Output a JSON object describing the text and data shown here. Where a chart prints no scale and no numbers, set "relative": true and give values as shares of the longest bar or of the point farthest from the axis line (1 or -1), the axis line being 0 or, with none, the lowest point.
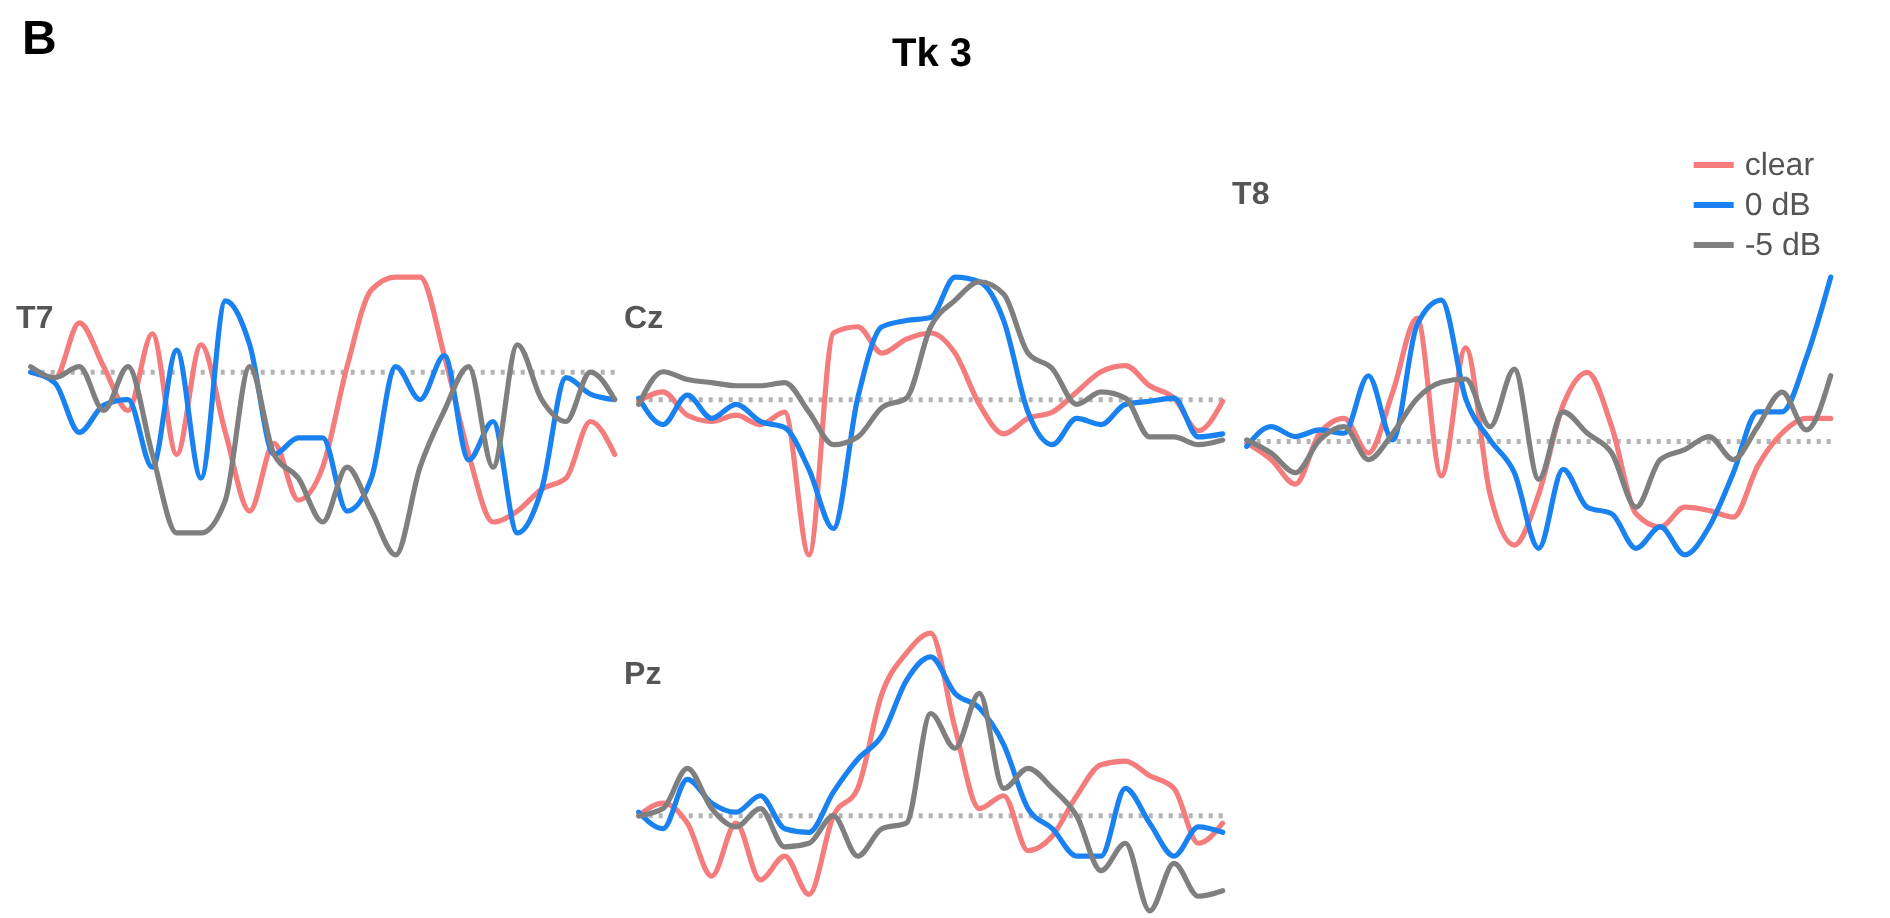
{
  "chart_data": [
    {
      "type": "other",
      "title": "Tk 3",
      "annotations": [
        "B"
      ]
    },
    {
      "type": "line",
      "title": "T7",
      "relative": true,
      "tick_labels": false,
      "marker": "none",
      "line_style": "solid",
      "categories": [
        null,
        null,
        null,
        null,
        null,
        null,
        null,
        null,
        null,
        null,
        null,
        null,
        null,
        null,
        null,
        null,
        null,
        null,
        null,
        null,
        null,
        null,
        null,
        null,
        null
      ],
      "ref_lines": [
        {
          "axis": "y",
          "value": 0,
          "color": "#b3b3b3",
          "line_style": "dotted"
        }
      ],
      "series": [
        {
          "color": "#f47c7c",
          "values": [
            0,
            -0.03,
            0.27,
            0.03,
            -0.21,
            0.21,
            -0.45,
            0.15,
            -0.33,
            -0.76,
            -0.39,
            -0.7,
            -0.52,
            0.03,
            0.45,
            0.52,
            0.52,
            0.09,
            -0.45,
            -0.82,
            -0.76,
            -0.64,
            -0.58,
            -0.27,
            -0.45
          ]
        },
        {
          "color": "#1a82f0",
          "values": [
            0,
            -0.06,
            -0.33,
            -0.18,
            -0.15,
            -0.52,
            0.12,
            -0.58,
            0.39,
            0.15,
            -0.45,
            -0.36,
            -0.36,
            -0.76,
            -0.58,
            0.03,
            -0.15,
            0.09,
            -0.48,
            -0.27,
            -0.88,
            -0.64,
            -0.03,
            -0.12,
            -0.15
          ]
        },
        {
          "color": "#7f7f7f",
          "values": [
            0.03,
            -0.03,
            0.03,
            -0.21,
            0.03,
            -0.45,
            -0.88,
            -0.88,
            -0.7,
            0.03,
            -0.45,
            -0.58,
            -0.82,
            -0.52,
            -0.76,
            -1,
            -0.52,
            -0.21,
            0.03,
            -0.52,
            0.15,
            -0.15,
            -0.27,
            0,
            -0.15
          ]
        }
      ]
    },
    {
      "type": "line",
      "title": "Cz",
      "relative": true,
      "tick_labels": false,
      "marker": "none",
      "line_style": "solid",
      "categories": [
        null,
        null,
        null,
        null,
        null,
        null,
        null,
        null,
        null,
        null,
        null,
        null,
        null,
        null,
        null,
        null,
        null,
        null,
        null,
        null,
        null,
        null,
        null,
        null,
        null
      ],
      "ref_lines": [
        {
          "axis": "y",
          "value": 0,
          "color": "#b3b3b3",
          "line_style": "dotted"
        }
      ],
      "series": [
        {
          "color": "#f47c7c",
          "values": [
            -0.01,
            0.05,
            -0.1,
            -0.14,
            -0.1,
            -0.16,
            -0.08,
            -1,
            0.43,
            0.47,
            0.3,
            0.39,
            0.43,
            0.3,
            -0.03,
            -0.22,
            -0.12,
            -0.08,
            0.05,
            0.18,
            0.22,
            0.09,
            0.01,
            -0.2,
            -0.01
          ]
        },
        {
          "color": "#1a82f0",
          "values": [
            0.01,
            -0.16,
            0.03,
            -0.12,
            -0.03,
            -0.14,
            -0.18,
            -0.45,
            -0.83,
            0.01,
            0.47,
            0.51,
            0.53,
            0.79,
            0.76,
            0.51,
            -0.08,
            -0.29,
            -0.12,
            -0.16,
            -0.03,
            -0.01,
            0.01,
            -0.24,
            -0.22
          ]
        },
        {
          "color": "#7f7f7f",
          "values": [
            -0.03,
            0.18,
            0.13,
            0.11,
            0.09,
            0.09,
            0.11,
            -0.08,
            -0.29,
            -0.24,
            -0.05,
            0.01,
            0.47,
            0.64,
            0.76,
            0.68,
            0.3,
            0.2,
            -0.03,
            0.05,
            0.01,
            -0.24,
            -0.24,
            -0.29,
            -0.26
          ]
        }
      ]
    },
    {
      "type": "line",
      "title": "T8",
      "relative": true,
      "tick_labels": false,
      "marker": "none",
      "line_style": "solid",
      "legend": "top right",
      "categories": [
        null,
        null,
        null,
        null,
        null,
        null,
        null,
        null,
        null,
        null,
        null,
        null,
        null,
        null,
        null,
        null,
        null,
        null,
        null,
        null,
        null,
        null,
        null,
        null,
        null
      ],
      "ref_lines": [
        {
          "axis": "y",
          "value": 0,
          "color": "#b3b3b3",
          "line_style": "dotted"
        }
      ],
      "series": [
        {
          "name": "clear",
          "color": "#f47c7c",
          "values": [
            -0.01,
            -0.11,
            -0.26,
            0.05,
            0.14,
            -0.07,
            0.3,
            0.75,
            -0.21,
            0.57,
            -0.32,
            -0.63,
            -0.32,
            0.22,
            0.42,
            0.09,
            -0.44,
            -0.52,
            -0.4,
            -0.42,
            -0.46,
            -0.15,
            0.05,
            0.14,
            0.14
          ]
        },
        {
          "name": "0 dB",
          "color": "#1a82f0",
          "values": [
            -0.03,
            0.09,
            0.03,
            0.07,
            0.05,
            0.4,
            0.01,
            0.71,
            0.86,
            0.26,
            0.01,
            -0.19,
            -0.65,
            -0.17,
            -0.4,
            -0.44,
            -0.65,
            -0.52,
            -0.69,
            -0.52,
            -0.19,
            0.18,
            0.18,
            0.51,
            1
          ]
        },
        {
          "name": "-5 dB",
          "color": "#7f7f7f",
          "values": [
            0.01,
            -0.07,
            -0.19,
            0.01,
            0.09,
            -0.11,
            0.05,
            0.26,
            0.36,
            0.38,
            0.09,
            0.44,
            -0.23,
            0.18,
            0.05,
            -0.07,
            -0.4,
            -0.11,
            -0.05,
            0.03,
            -0.11,
            0.09,
            0.3,
            0.07,
            0.4
          ]
        }
      ]
    },
    {
      "type": "line",
      "title": "Pz",
      "relative": true,
      "tick_labels": false,
      "marker": "none",
      "line_style": "solid",
      "categories": [
        null,
        null,
        null,
        null,
        null,
        null,
        null,
        null,
        null,
        null,
        null,
        null,
        null,
        null,
        null,
        null,
        null,
        null,
        null,
        null,
        null,
        null,
        null,
        null,
        null
      ],
      "ref_lines": [
        {
          "axis": "y",
          "value": 0,
          "color": "#b3b3b3",
          "line_style": "dotted"
        }
      ],
      "series": [
        {
          "color": "#f47c7c",
          "values": [
            0,
            0.07,
            -0.04,
            -0.33,
            -0.04,
            -0.35,
            -0.22,
            -0.43,
            0,
            0.15,
            0.67,
            0.89,
            1,
            0.48,
            0.04,
            0.11,
            -0.19,
            -0.11,
            0.11,
            0.28,
            0.3,
            0.22,
            0.15,
            -0.15,
            -0.04
          ]
        },
        {
          "color": "#1a82f0",
          "values": [
            0.02,
            -0.07,
            0.2,
            0.07,
            0.02,
            0.11,
            -0.07,
            -0.09,
            0.13,
            0.31,
            0.44,
            0.74,
            0.87,
            0.67,
            0.59,
            0.39,
            0.04,
            -0.07,
            -0.22,
            -0.22,
            0.15,
            -0.04,
            -0.22,
            -0.06,
            -0.09
          ]
        },
        {
          "color": "#7f7f7f",
          "values": [
            0,
            0.04,
            0.26,
            0.04,
            -0.06,
            0.04,
            -0.17,
            -0.15,
            0,
            -0.22,
            -0.07,
            -0.04,
            0.56,
            0.37,
            0.67,
            0.15,
            0.26,
            0.15,
            0,
            -0.3,
            -0.15,
            -0.52,
            -0.26,
            -0.44,
            -0.41
          ]
        }
      ]
    }
  ]
}
